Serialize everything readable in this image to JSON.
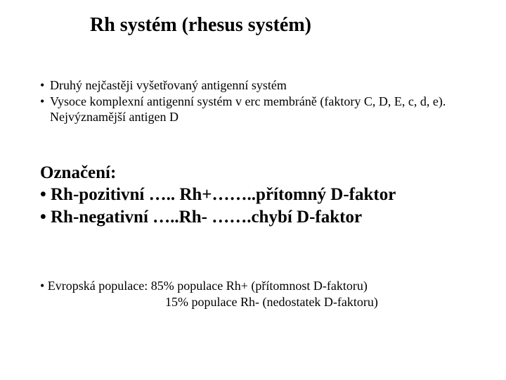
{
  "title": "Rh systém (rhesus systém)",
  "intro": {
    "b1": "Druhý nejčastěji vyšetřovaný antigenní systém",
    "b2": "Vysoce komplexní antigenní systém v erc membráně  (faktory C, D, E, c, d, e). Nejvýznamější antigen D"
  },
  "designation": {
    "heading": "Označení:",
    "line1": "• Rh-pozitivní ….. Rh+……..přítomný D-faktor",
    "line2": "• Rh-negativní …..Rh- …….chybí D-faktor"
  },
  "population": {
    "line1": "• Evropská populace: 85% populace  Rh+ (přítomnost D-faktoru)",
    "line2": "15% populace  Rh-  (nedostatek D-faktoru)"
  },
  "colors": {
    "background": "#ffffff",
    "text": "#000000"
  },
  "fontsizes": {
    "title": 28,
    "small": 18,
    "large": 25
  }
}
